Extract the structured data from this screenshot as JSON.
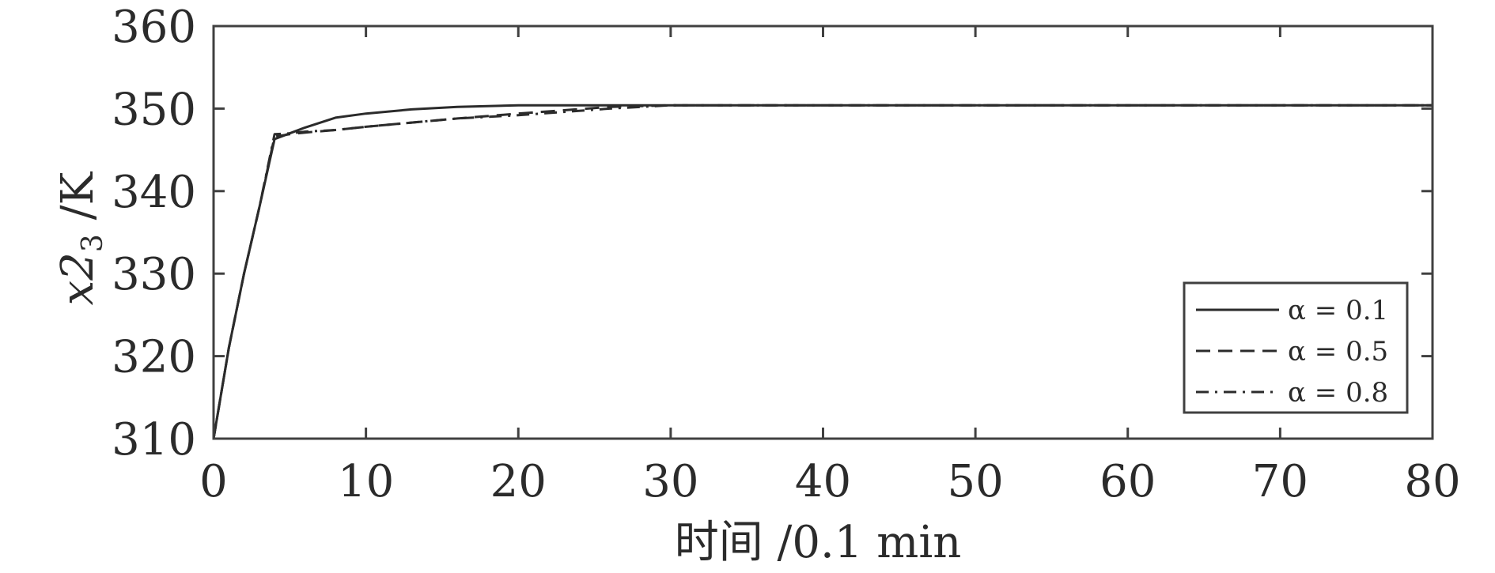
{
  "chart_data": {
    "type": "line",
    "xlabel": "时间 /0.1 min",
    "ylabel": {
      "base": "x2",
      "subscript": "3",
      "unit": " /K"
    },
    "xlim": [
      0,
      80
    ],
    "ylim": [
      310,
      360
    ],
    "xticks": [
      0,
      10,
      20,
      30,
      40,
      50,
      60,
      70,
      80
    ],
    "yticks": [
      310,
      320,
      330,
      340,
      350,
      360
    ],
    "xtick_labels": [
      "0",
      "10",
      "20",
      "30",
      "40",
      "50",
      "60",
      "70",
      "80"
    ],
    "ytick_labels": [
      "310",
      "320",
      "330",
      "340",
      "350",
      "360"
    ],
    "grid": false,
    "legend_position": "lower-right",
    "colors": {
      "line": "#2b2b2b",
      "axis": "#404040"
    },
    "series": [
      {
        "name": "α = 0.1",
        "style": "solid",
        "x": [
          0,
          1,
          2,
          3,
          4,
          5,
          6,
          8,
          10,
          13,
          16,
          20,
          25,
          30,
          40,
          50,
          60,
          70,
          80
        ],
        "y": [
          310,
          321,
          330,
          338,
          346.3,
          347.0,
          347.7,
          348.9,
          349.4,
          349.9,
          350.2,
          350.4,
          350.4,
          350.4,
          350.4,
          350.4,
          350.4,
          350.4,
          350.4
        ]
      },
      {
        "name": "α = 0.5",
        "style": "dashed",
        "x": [
          0,
          1,
          2,
          3,
          4,
          5,
          6,
          8,
          10,
          13,
          16,
          20,
          23,
          26,
          30,
          40,
          50,
          60,
          70,
          80
        ],
        "y": [
          310,
          321,
          330,
          338,
          346.6,
          346.9,
          347.1,
          347.4,
          347.8,
          348.3,
          348.8,
          349.4,
          349.8,
          350.2,
          350.4,
          350.4,
          350.4,
          350.4,
          350.4,
          350.4
        ]
      },
      {
        "name": "α = 0.8",
        "style": "dashdot",
        "x": [
          0,
          1,
          2,
          3,
          4,
          5,
          6,
          8,
          10,
          13,
          16,
          20,
          23,
          26,
          29,
          30,
          40,
          50,
          60,
          70,
          80
        ],
        "y": [
          310,
          321,
          330,
          338,
          346.9,
          347.0,
          347.2,
          347.4,
          347.8,
          348.3,
          348.8,
          349.2,
          349.6,
          350.0,
          350.3,
          350.4,
          350.4,
          350.4,
          350.4,
          350.4,
          350.4
        ]
      }
    ]
  }
}
